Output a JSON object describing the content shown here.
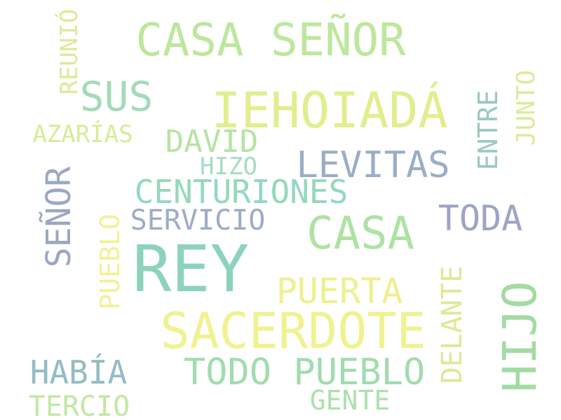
{
  "words": [
    {
      "text": "REY",
      "color": "#8dd3ba"
    },
    {
      "text": "IEHOIADÁ",
      "color": "#e2ee8e"
    },
    {
      "text": "CASA SEÑOR",
      "color": "#bde79d"
    },
    {
      "text": "SACERDOTE",
      "color": "#f0f291"
    },
    {
      "text": "HIJO",
      "color": "#a3dba3"
    },
    {
      "text": "CASA",
      "color": "#aee2a4"
    },
    {
      "text": "SEÑOR",
      "color": "#9ba8c2"
    },
    {
      "text": "SUS",
      "color": "#a3dbb8"
    },
    {
      "text": "LEVITAS",
      "color": "#9aaec4"
    },
    {
      "text": "TODO PUEBLO",
      "color": "#a1dcb0"
    },
    {
      "text": "CENTURIONES",
      "color": "#95d8bb"
    },
    {
      "text": "TODA",
      "color": "#9ca5c4"
    },
    {
      "text": "PUERTA",
      "color": "#eef08f"
    },
    {
      "text": "DAVID",
      "color": "#b6e4a3"
    },
    {
      "text": "HABÍA",
      "color": "#94bcc4"
    },
    {
      "text": "DELANTE",
      "color": "#dbeb96"
    },
    {
      "text": "SERVICIO",
      "color": "#9cacc4"
    },
    {
      "text": "PUEBLO",
      "color": "#f3f196"
    },
    {
      "text": "ENTRE",
      "color": "#9cc8c0"
    },
    {
      "text": "JUNTO",
      "color": "#d9ec9c"
    },
    {
      "text": "TERCIO",
      "color": "#c2e8a4"
    },
    {
      "text": "GENTE",
      "color": "#ace0ae"
    },
    {
      "text": "AZARÍAS",
      "color": "#d5ec98"
    },
    {
      "text": "REUNIÓ",
      "color": "#dbeb98"
    },
    {
      "text": "HIZO",
      "color": "#a5dcc2"
    }
  ]
}
